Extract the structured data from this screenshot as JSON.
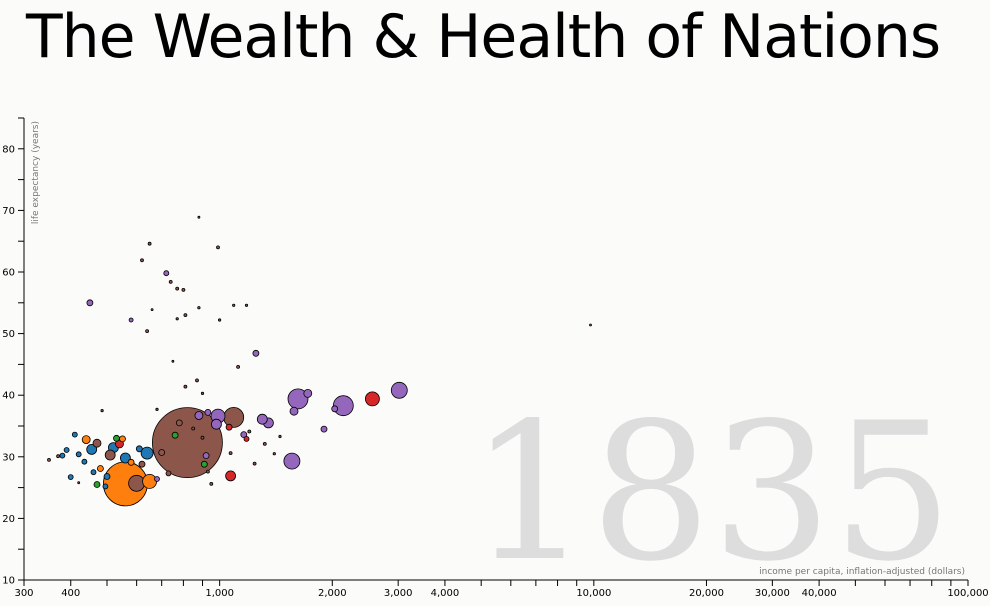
{
  "chart_data": {
    "type": "scatter",
    "title": "The Wealth & Health of Nations",
    "xlabel": "income per capita, inflation-adjusted (dollars)",
    "ylabel": "life expectancy (years)",
    "year": "1835",
    "xscale": "log",
    "xlim": [
      300,
      100000
    ],
    "ylim": [
      10,
      85
    ],
    "x_ticks": [
      300,
      400,
      1000,
      2000,
      3000,
      4000,
      10000,
      20000,
      30000,
      40000,
      100000
    ],
    "x_tick_labels": [
      "300",
      "400",
      "1,000",
      "2,000",
      "3,000",
      "4,000",
      "10,000",
      "20,000",
      "30,000",
      "40,000",
      "100,000"
    ],
    "y_ticks": [
      10,
      20,
      30,
      40,
      50,
      60,
      70,
      80
    ],
    "y_tick_labels": [
      "10",
      "20",
      "30",
      "40",
      "50",
      "60",
      "70",
      "80"
    ],
    "grid": false,
    "legend": "none",
    "region_colors": {
      "blue": "#1f77b4",
      "orange": "#ff7f0e",
      "green": "#2ca02c",
      "red": "#d62728",
      "purple": "#9467bd",
      "brown": "#8c564b"
    },
    "points": [
      {
        "x": 560,
        "y": 25.6,
        "r": 22,
        "c": "orange"
      },
      {
        "x": 820,
        "y": 32.3,
        "r": 35,
        "c": "brown"
      },
      {
        "x": 600,
        "y": 25.7,
        "r": 8,
        "c": "brown"
      },
      {
        "x": 650,
        "y": 26,
        "r": 7,
        "c": "orange"
      },
      {
        "x": 1090,
        "y": 36.4,
        "r": 10,
        "c": "brown"
      },
      {
        "x": 1620,
        "y": 39.4,
        "r": 10,
        "c": "purple"
      },
      {
        "x": 2140,
        "y": 38.3,
        "r": 10,
        "c": "purple"
      },
      {
        "x": 3020,
        "y": 40.8,
        "r": 8,
        "c": "purple"
      },
      {
        "x": 2560,
        "y": 39.4,
        "r": 7,
        "c": "red"
      },
      {
        "x": 1560,
        "y": 29.3,
        "r": 8,
        "c": "purple"
      },
      {
        "x": 990,
        "y": 36.6,
        "r": 7,
        "c": "purple"
      },
      {
        "x": 640,
        "y": 30.6,
        "r": 6,
        "c": "blue"
      },
      {
        "x": 1070,
        "y": 26.9,
        "r": 5,
        "c": "red"
      },
      {
        "x": 455,
        "y": 31.2,
        "r": 5,
        "c": "blue"
      },
      {
        "x": 520,
        "y": 31.5,
        "r": 5,
        "c": "blue"
      },
      {
        "x": 510,
        "y": 30.3,
        "r": 5,
        "c": "brown"
      },
      {
        "x": 560,
        "y": 29.8,
        "r": 5,
        "c": "blue"
      },
      {
        "x": 540,
        "y": 32.1,
        "r": 4,
        "c": "red"
      },
      {
        "x": 470,
        "y": 32.2,
        "r": 4,
        "c": "brown"
      },
      {
        "x": 440,
        "y": 32.8,
        "r": 4,
        "c": "orange"
      },
      {
        "x": 980,
        "y": 35.3,
        "r": 5,
        "c": "purple"
      },
      {
        "x": 1350,
        "y": 35.5,
        "r": 5,
        "c": "purple"
      },
      {
        "x": 1300,
        "y": 36.1,
        "r": 5,
        "c": "purple"
      },
      {
        "x": 1580,
        "y": 37.4,
        "r": 4,
        "c": "purple"
      },
      {
        "x": 1720,
        "y": 40.3,
        "r": 4,
        "c": "purple"
      },
      {
        "x": 2030,
        "y": 37.8,
        "r": 3,
        "c": "purple"
      },
      {
        "x": 1900,
        "y": 34.5,
        "r": 3,
        "c": "purple"
      },
      {
        "x": 1250,
        "y": 46.8,
        "r": 3,
        "c": "purple"
      },
      {
        "x": 720,
        "y": 59.8,
        "r": 2.5,
        "c": "purple"
      },
      {
        "x": 920,
        "y": 30.2,
        "r": 3,
        "c": "purple"
      },
      {
        "x": 880,
        "y": 36.7,
        "r": 4,
        "c": "purple"
      },
      {
        "x": 930,
        "y": 37.2,
        "r": 3,
        "c": "purple"
      },
      {
        "x": 1160,
        "y": 33.6,
        "r": 3,
        "c": "purple"
      },
      {
        "x": 450,
        "y": 55,
        "r": 3,
        "c": "purple"
      },
      {
        "x": 530,
        "y": 33,
        "r": 3,
        "c": "green"
      },
      {
        "x": 760,
        "y": 33.5,
        "r": 3,
        "c": "green"
      },
      {
        "x": 910,
        "y": 28.8,
        "r": 3,
        "c": "green"
      },
      {
        "x": 470,
        "y": 25.5,
        "r": 3,
        "c": "green"
      },
      {
        "x": 480,
        "y": 28.1,
        "r": 3,
        "c": "orange"
      },
      {
        "x": 500,
        "y": 26.8,
        "r": 3,
        "c": "blue"
      },
      {
        "x": 550,
        "y": 32.9,
        "r": 3,
        "c": "orange"
      },
      {
        "x": 580,
        "y": 29.1,
        "r": 3,
        "c": "orange"
      },
      {
        "x": 610,
        "y": 31.3,
        "r": 3,
        "c": "blue"
      },
      {
        "x": 620,
        "y": 28.8,
        "r": 3,
        "c": "brown"
      },
      {
        "x": 680,
        "y": 26.4,
        "r": 2.5,
        "c": "purple"
      },
      {
        "x": 700,
        "y": 30.7,
        "r": 3,
        "c": "brown"
      },
      {
        "x": 730,
        "y": 27.3,
        "r": 2.5,
        "c": "brown"
      },
      {
        "x": 780,
        "y": 35.5,
        "r": 3,
        "c": "brown"
      },
      {
        "x": 1060,
        "y": 34.8,
        "r": 3,
        "c": "red"
      },
      {
        "x": 1180,
        "y": 32.9,
        "r": 2.5,
        "c": "red"
      },
      {
        "x": 410,
        "y": 33.6,
        "r": 2.5,
        "c": "blue"
      },
      {
        "x": 420,
        "y": 30.4,
        "r": 2.5,
        "c": "blue"
      },
      {
        "x": 390,
        "y": 31.1,
        "r": 2.5,
        "c": "blue"
      },
      {
        "x": 380,
        "y": 30.2,
        "r": 2.5,
        "c": "blue"
      },
      {
        "x": 435,
        "y": 29.2,
        "r": 2.5,
        "c": "blue"
      },
      {
        "x": 460,
        "y": 27.5,
        "r": 2.5,
        "c": "blue"
      },
      {
        "x": 495,
        "y": 25.2,
        "r": 2.5,
        "c": "blue"
      },
      {
        "x": 400,
        "y": 26.7,
        "r": 2.5,
        "c": "blue"
      },
      {
        "x": 580,
        "y": 52.2,
        "r": 2,
        "c": "purple"
      },
      {
        "x": 620,
        "y": 61.9,
        "r": 1.5,
        "c": "brown"
      },
      {
        "x": 650,
        "y": 64.6,
        "r": 1.5,
        "c": "brown"
      },
      {
        "x": 990,
        "y": 64,
        "r": 1.5,
        "c": "brown"
      },
      {
        "x": 770,
        "y": 57.3,
        "r": 1.5,
        "c": "brown"
      },
      {
        "x": 800,
        "y": 57.1,
        "r": 1.5,
        "c": "brown"
      },
      {
        "x": 740,
        "y": 58.4,
        "r": 1.5,
        "c": "brown"
      },
      {
        "x": 880,
        "y": 54.2,
        "r": 1.2,
        "c": "brown"
      },
      {
        "x": 810,
        "y": 53,
        "r": 1.5,
        "c": "brown"
      },
      {
        "x": 770,
        "y": 52.4,
        "r": 1.2,
        "c": "brown"
      },
      {
        "x": 640,
        "y": 50.4,
        "r": 1.5,
        "c": "brown"
      },
      {
        "x": 1090,
        "y": 54.6,
        "r": 1.2,
        "c": "brown"
      },
      {
        "x": 1180,
        "y": 54.6,
        "r": 1.2,
        "c": "brown"
      },
      {
        "x": 1000,
        "y": 52.2,
        "r": 1.2,
        "c": "brown"
      },
      {
        "x": 1120,
        "y": 44.6,
        "r": 1.5,
        "c": "brown"
      },
      {
        "x": 870,
        "y": 42.4,
        "r": 1.5,
        "c": "brown"
      },
      {
        "x": 810,
        "y": 41.4,
        "r": 1.5,
        "c": "brown"
      },
      {
        "x": 900,
        "y": 40.3,
        "r": 1.2,
        "c": "brown"
      },
      {
        "x": 680,
        "y": 37.7,
        "r": 1.2,
        "c": "brown"
      },
      {
        "x": 1200,
        "y": 34.1,
        "r": 1.5,
        "c": "brown"
      },
      {
        "x": 1240,
        "y": 28.9,
        "r": 1.5,
        "c": "brown"
      },
      {
        "x": 1070,
        "y": 30.6,
        "r": 1.5,
        "c": "brown"
      },
      {
        "x": 950,
        "y": 25.6,
        "r": 1.5,
        "c": "brown"
      },
      {
        "x": 1400,
        "y": 30.5,
        "r": 1.2,
        "c": "brown"
      },
      {
        "x": 1320,
        "y": 32.1,
        "r": 1.5,
        "c": "brown"
      },
      {
        "x": 880,
        "y": 68.9,
        "r": 1,
        "c": "brown"
      },
      {
        "x": 660,
        "y": 53.9,
        "r": 1,
        "c": "brown"
      },
      {
        "x": 900,
        "y": 33.1,
        "r": 1.5,
        "c": "brown"
      },
      {
        "x": 850,
        "y": 34.6,
        "r": 1.5,
        "c": "brown"
      },
      {
        "x": 350,
        "y": 29.5,
        "r": 1.5,
        "c": "brown"
      },
      {
        "x": 370,
        "y": 30.1,
        "r": 1.5,
        "c": "brown"
      },
      {
        "x": 485,
        "y": 37.5,
        "r": 1.2,
        "c": "brown"
      },
      {
        "x": 930,
        "y": 27.6,
        "r": 1.5,
        "c": "brown"
      },
      {
        "x": 1450,
        "y": 33.3,
        "r": 1.2,
        "c": "brown"
      },
      {
        "x": 750,
        "y": 45.5,
        "r": 1,
        "c": "brown"
      },
      {
        "x": 9800,
        "y": 51.4,
        "r": 1,
        "c": "brown"
      },
      {
        "x": 420,
        "y": 25.8,
        "r": 1,
        "c": "brown"
      }
    ]
  }
}
